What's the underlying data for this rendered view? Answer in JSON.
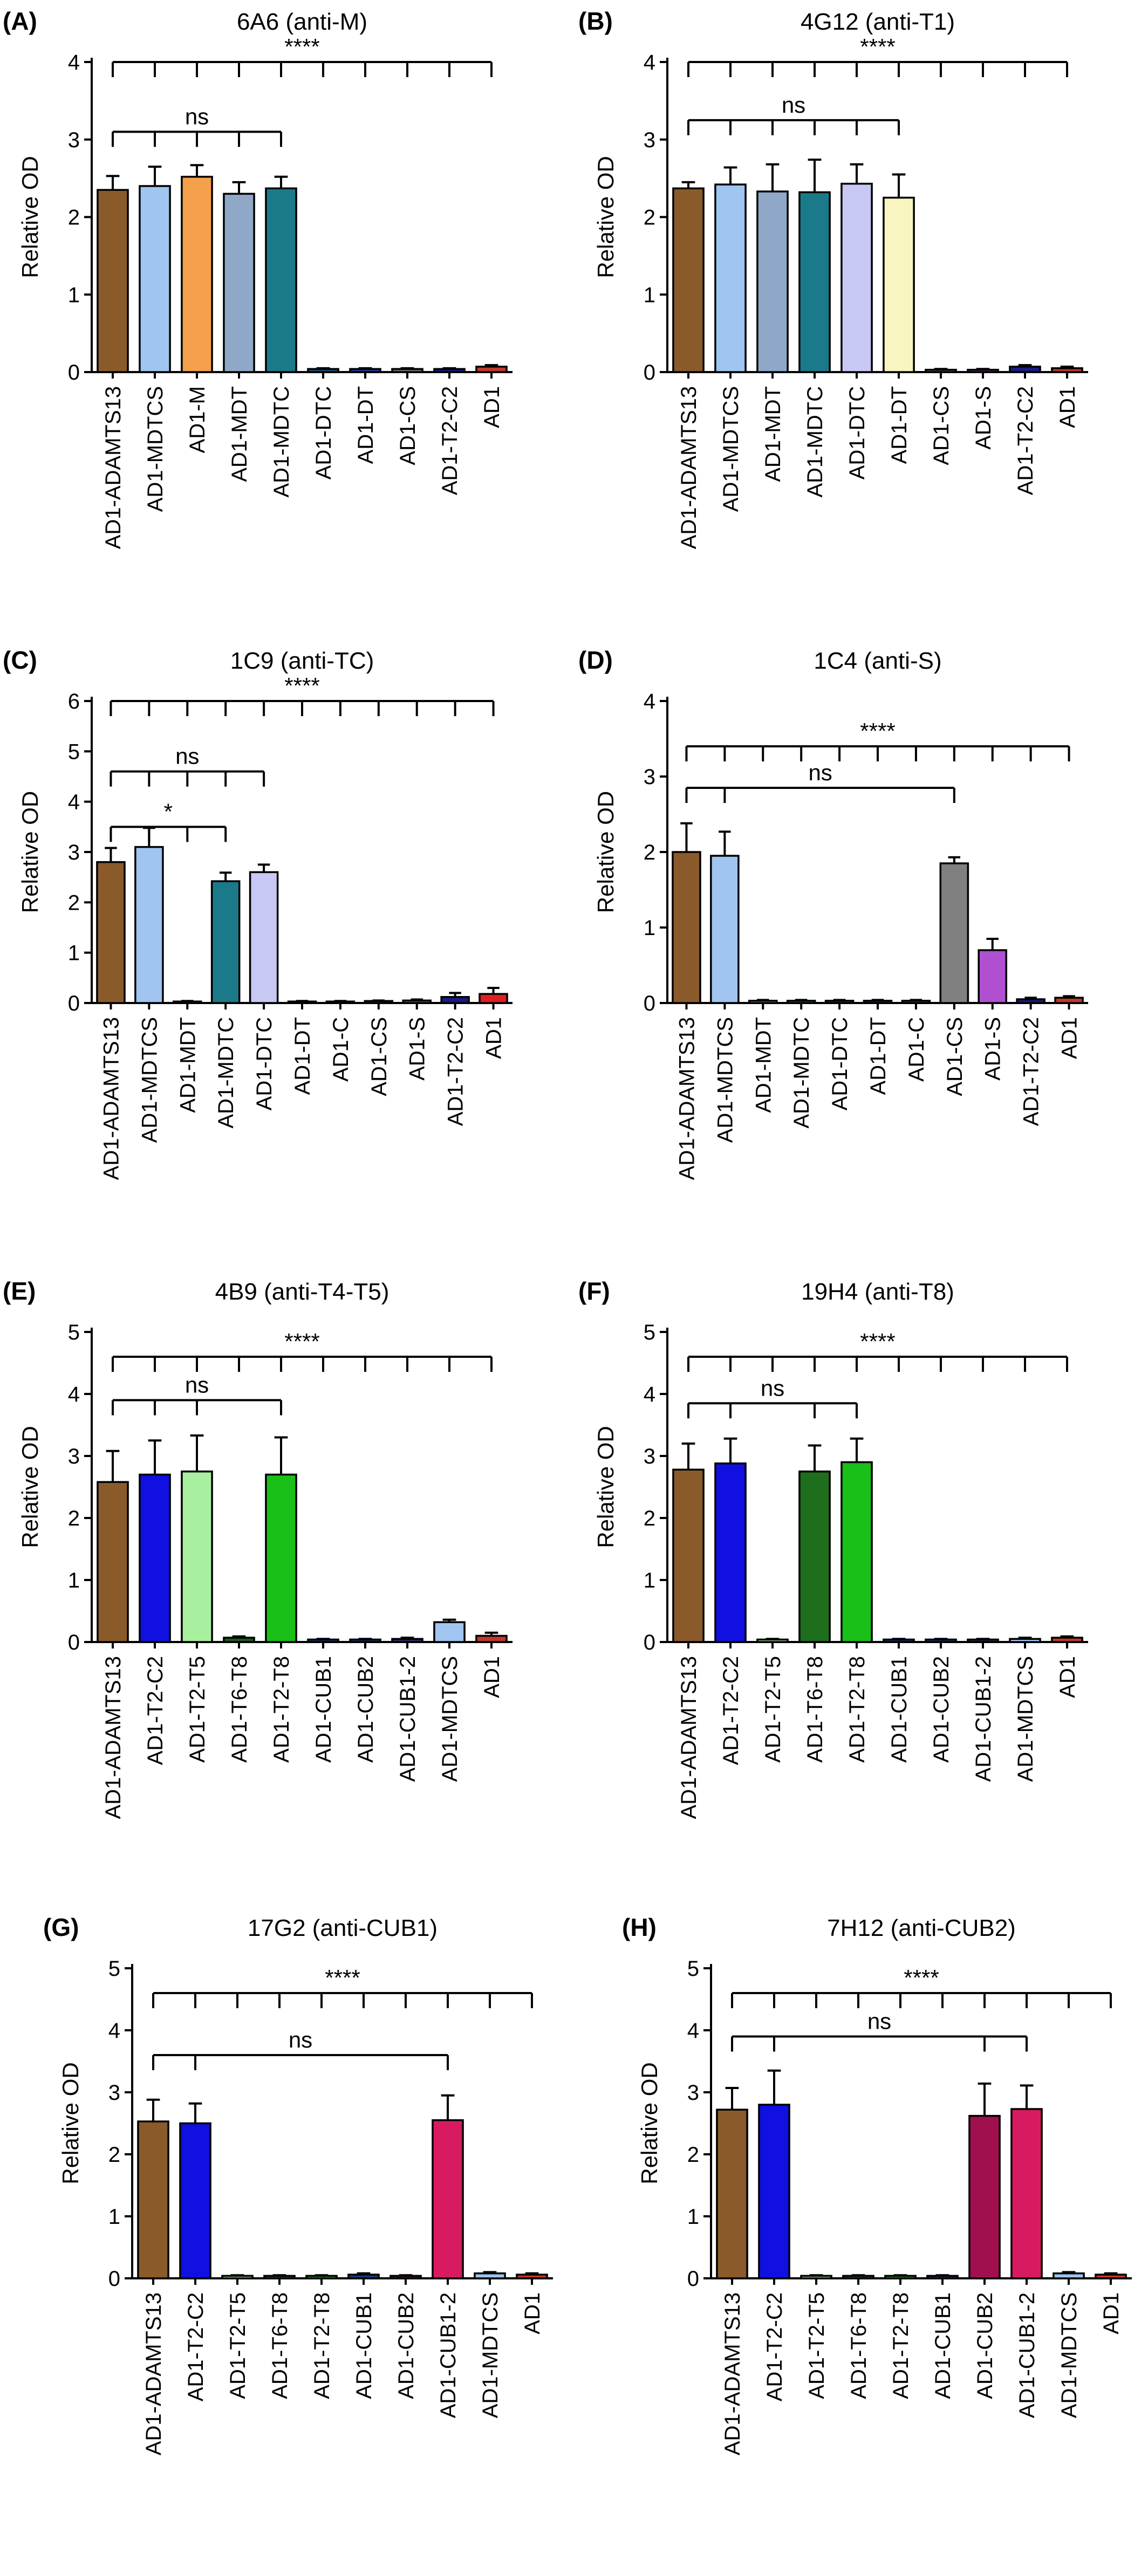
{
  "chart_data": [
    {
      "panel": "(A)",
      "title": "6A6 (anti-M)",
      "type": "bar",
      "ylabel": "Relative OD",
      "ylim": [
        0,
        4
      ],
      "yticks": [
        0,
        1,
        2,
        3,
        4
      ],
      "categories": [
        "AD1-ADAMTS13",
        "AD1-MDTCS",
        "AD1-M",
        "AD1-MDT",
        "AD1-MDTC",
        "AD1-DTC",
        "AD1-DT",
        "AD1-CS",
        "AD1-T2-C2",
        "AD1"
      ],
      "values": [
        2.35,
        2.4,
        2.52,
        2.3,
        2.37,
        0.04,
        0.04,
        0.04,
        0.04,
        0.07
      ],
      "errors": [
        0.18,
        0.25,
        0.15,
        0.15,
        0.15,
        0.01,
        0.01,
        0.01,
        0.01,
        0.02
      ],
      "colors": [
        "#8B5A2B",
        "#9FC5F0",
        "#F5A04A",
        "#8FA8C8",
        "#1B7A8A",
        "#1B4F72",
        "#1F3A93",
        "#6E6E6E",
        "#1A1A80",
        "#C0392B"
      ],
      "significance": [
        {
          "label": "****",
          "from": 0,
          "to": [
            1,
            2,
            3,
            4,
            5,
            6,
            7,
            8,
            9
          ],
          "level": 4.0
        },
        {
          "label": "ns",
          "from": 0,
          "to": [
            1,
            2,
            3,
            4
          ],
          "level": 3.1
        }
      ]
    },
    {
      "panel": "(B)",
      "title": "4G12 (anti-T1)",
      "type": "bar",
      "ylabel": "Relative OD",
      "ylim": [
        0,
        4
      ],
      "yticks": [
        0,
        1,
        2,
        3,
        4
      ],
      "categories": [
        "AD1-ADAMTS13",
        "AD1-MDTCS",
        "AD1-MDT",
        "AD1-MDTC",
        "AD1-DTC",
        "AD1-DT",
        "AD1-CS",
        "AD1-S",
        "AD1-T2-C2",
        "AD1"
      ],
      "values": [
        2.37,
        2.42,
        2.33,
        2.32,
        2.43,
        2.25,
        0.03,
        0.03,
        0.07,
        0.05
      ],
      "errors": [
        0.08,
        0.22,
        0.35,
        0.42,
        0.25,
        0.3,
        0.01,
        0.01,
        0.02,
        0.02
      ],
      "colors": [
        "#8B5A2B",
        "#9FC5F0",
        "#8FA8C8",
        "#1B7A8A",
        "#C8C8F5",
        "#F8F5C0",
        "#6E6E6E",
        "#7A3FA0",
        "#1A1A80",
        "#C0392B"
      ],
      "significance": [
        {
          "label": "****",
          "from": 0,
          "to": [
            1,
            2,
            3,
            4,
            5,
            6,
            7,
            8,
            9
          ],
          "level": 4.0
        },
        {
          "label": "ns",
          "from": 0,
          "to": [
            1,
            2,
            3,
            4,
            5
          ],
          "level": 3.25
        }
      ]
    },
    {
      "panel": "(C)",
      "title": "1C9 (anti-TC)",
      "type": "bar",
      "ylabel": "Relative OD",
      "ylim": [
        0,
        6
      ],
      "yticks": [
        0,
        1,
        2,
        3,
        4,
        5,
        6
      ],
      "categories": [
        "AD1-ADAMTS13",
        "AD1-MDTCS",
        "AD1-MDT",
        "AD1-MDTC",
        "AD1-DTC",
        "AD1-DT",
        "AD1-C",
        "AD1-CS",
        "AD1-S",
        "AD1-T2-C2",
        "AD1"
      ],
      "values": [
        2.8,
        3.1,
        0.03,
        2.42,
        2.6,
        0.03,
        0.03,
        0.04,
        0.05,
        0.12,
        0.18
      ],
      "errors": [
        0.28,
        0.38,
        0.01,
        0.17,
        0.15,
        0.01,
        0.01,
        0.01,
        0.02,
        0.08,
        0.12
      ],
      "colors": [
        "#8B5A2B",
        "#9FC5F0",
        "#8FA8C8",
        "#1B7A8A",
        "#C8C8F5",
        "#1F3A93",
        "#555555",
        "#6E6E6E",
        "#7A3FA0",
        "#1A1A80",
        "#E02020"
      ],
      "significance": [
        {
          "label": "****",
          "from": 0,
          "to": [
            1,
            2,
            3,
            4,
            5,
            6,
            7,
            8,
            9,
            10
          ],
          "level": 6.0
        },
        {
          "label": "ns",
          "from": 0,
          "to": [
            1,
            2,
            3,
            4
          ],
          "level": 4.6
        },
        {
          "label": "*",
          "from": 0,
          "to": [
            1,
            2,
            3
          ],
          "level": 3.5
        }
      ]
    },
    {
      "panel": "(D)",
      "title": "1C4 (anti-S)",
      "type": "bar",
      "ylabel": "Relative OD",
      "ylim": [
        0,
        4
      ],
      "yticks": [
        0,
        1,
        2,
        3,
        4
      ],
      "categories": [
        "AD1-ADAMTS13",
        "AD1-MDTCS",
        "AD1-MDT",
        "AD1-MDTC",
        "AD1-DTC",
        "AD1-DT",
        "AD1-C",
        "AD1-CS",
        "AD1-S",
        "AD1-T2-C2",
        "AD1"
      ],
      "values": [
        2.0,
        1.95,
        0.03,
        0.03,
        0.03,
        0.03,
        0.03,
        1.85,
        0.7,
        0.05,
        0.07
      ],
      "errors": [
        0.38,
        0.32,
        0.01,
        0.01,
        0.01,
        0.01,
        0.01,
        0.08,
        0.15,
        0.02,
        0.02
      ],
      "colors": [
        "#8B5A2B",
        "#9FC5F0",
        "#8FA8C8",
        "#1B7A8A",
        "#1B4F72",
        "#1F3A93",
        "#555555",
        "#808080",
        "#B050D0",
        "#1A1A80",
        "#C0392B"
      ],
      "significance": [
        {
          "label": "****",
          "from": 0,
          "to": [
            1,
            2,
            3,
            4,
            5,
            6,
            7,
            8,
            9,
            10
          ],
          "level": 3.4
        },
        {
          "label": "ns",
          "from": 0,
          "to": [
            1,
            7
          ],
          "level": 2.85
        }
      ]
    },
    {
      "panel": "(E)",
      "title": "4B9 (anti-T4-T5)",
      "type": "bar",
      "ylabel": "Relative OD",
      "ylim": [
        0,
        5
      ],
      "yticks": [
        0,
        1,
        2,
        3,
        4,
        5
      ],
      "categories": [
        "AD1-ADAMTS13",
        "AD1-T2-C2",
        "AD1-T2-T5",
        "AD1-T6-T8",
        "AD1-T2-T8",
        "AD1-CUB1",
        "AD1-CUB2",
        "AD1-CUB1-2",
        "AD1-MDTCS",
        "AD1"
      ],
      "values": [
        2.58,
        2.7,
        2.75,
        0.07,
        2.7,
        0.04,
        0.04,
        0.05,
        0.32,
        0.1
      ],
      "errors": [
        0.5,
        0.55,
        0.58,
        0.02,
        0.6,
        0.01,
        0.01,
        0.02,
        0.04,
        0.05
      ],
      "colors": [
        "#8B5A2B",
        "#1010E0",
        "#A8F0A0",
        "#1E5A1E",
        "#18C018",
        "#1A3A7A",
        "#1A3A7A",
        "#2A2A60",
        "#9FC5F0",
        "#C0392B"
      ],
      "significance": [
        {
          "label": "****",
          "from": 0,
          "to": [
            1,
            2,
            3,
            4,
            5,
            6,
            7,
            8,
            9
          ],
          "level": 4.6
        },
        {
          "label": "ns",
          "from": 0,
          "to": [
            1,
            2,
            4
          ],
          "level": 3.9
        }
      ]
    },
    {
      "panel": "(F)",
      "title": "19H4 (anti-T8)",
      "type": "bar",
      "ylabel": "Relative OD",
      "ylim": [
        0,
        5
      ],
      "yticks": [
        0,
        1,
        2,
        3,
        4,
        5
      ],
      "categories": [
        "AD1-ADAMTS13",
        "AD1-T2-C2",
        "AD1-T2-T5",
        "AD1-T6-T8",
        "AD1-T2-T8",
        "AD1-CUB1",
        "AD1-CUB2",
        "AD1-CUB1-2",
        "AD1-MDTCS",
        "AD1"
      ],
      "values": [
        2.78,
        2.88,
        0.04,
        2.75,
        2.9,
        0.04,
        0.04,
        0.04,
        0.05,
        0.07
      ],
      "errors": [
        0.42,
        0.4,
        0.01,
        0.42,
        0.38,
        0.01,
        0.01,
        0.01,
        0.02,
        0.02
      ],
      "colors": [
        "#8B5A2B",
        "#1010E0",
        "#A8F0A0",
        "#1E6E1E",
        "#18C018",
        "#1A3A7A",
        "#1A3A7A",
        "#2A2A60",
        "#9FC5F0",
        "#C0392B"
      ],
      "significance": [
        {
          "label": "****",
          "from": 0,
          "to": [
            1,
            2,
            3,
            4,
            5,
            6,
            7,
            8,
            9
          ],
          "level": 4.6
        },
        {
          "label": "ns",
          "from": 0,
          "to": [
            1,
            3,
            4
          ],
          "level": 3.85
        }
      ]
    },
    {
      "panel": "(G)",
      "title": "17G2 (anti-CUB1)",
      "type": "bar",
      "ylabel": "Relative OD",
      "ylim": [
        0,
        5
      ],
      "yticks": [
        0,
        1,
        2,
        3,
        4,
        5
      ],
      "categories": [
        "AD1-ADAMTS13",
        "AD1-T2-C2",
        "AD1-T2-T5",
        "AD1-T6-T8",
        "AD1-T2-T8",
        "AD1-CUB1",
        "AD1-CUB2",
        "AD1-CUB1-2",
        "AD1-MDTCS",
        "AD1"
      ],
      "values": [
        2.53,
        2.5,
        0.04,
        0.04,
        0.04,
        0.06,
        0.04,
        2.55,
        0.08,
        0.06
      ],
      "errors": [
        0.35,
        0.32,
        0.01,
        0.01,
        0.01,
        0.02,
        0.01,
        0.4,
        0.02,
        0.02
      ],
      "colors": [
        "#8B5A2B",
        "#1010E0",
        "#A8F0A0",
        "#1E5A1E",
        "#18C018",
        "#1A3A7A",
        "#5A1A3A",
        "#D81B60",
        "#9FC5F0",
        "#C0392B"
      ],
      "significance": [
        {
          "label": "****",
          "from": 0,
          "to": [
            1,
            2,
            3,
            4,
            5,
            6,
            7,
            8,
            9
          ],
          "level": 4.6
        },
        {
          "label": "ns",
          "from": 0,
          "to": [
            1,
            7
          ],
          "level": 3.6
        }
      ]
    },
    {
      "panel": "(H)",
      "title": "7H12 (anti-CUB2)",
      "type": "bar",
      "ylabel": "Relative OD",
      "ylim": [
        0,
        5
      ],
      "yticks": [
        0,
        1,
        2,
        3,
        4,
        5
      ],
      "categories": [
        "AD1-ADAMTS13",
        "AD1-T2-C2",
        "AD1-T2-T5",
        "AD1-T6-T8",
        "AD1-T2-T8",
        "AD1-CUB1",
        "AD1-CUB2",
        "AD1-CUB1-2",
        "AD1-MDTCS",
        "AD1"
      ],
      "values": [
        2.72,
        2.8,
        0.04,
        0.04,
        0.04,
        0.04,
        2.62,
        2.73,
        0.08,
        0.06
      ],
      "errors": [
        0.35,
        0.55,
        0.01,
        0.01,
        0.01,
        0.01,
        0.52,
        0.38,
        0.02,
        0.02
      ],
      "colors": [
        "#8B5A2B",
        "#1010E0",
        "#A8F0A0",
        "#1E5A1E",
        "#18C018",
        "#1A3A7A",
        "#A0104E",
        "#D81B60",
        "#9FC5F0",
        "#C0392B"
      ],
      "significance": [
        {
          "label": "****",
          "from": 0,
          "to": [
            1,
            2,
            3,
            4,
            5,
            6,
            7,
            8,
            9
          ],
          "level": 4.6
        },
        {
          "label": "ns",
          "from": 0,
          "to": [
            1,
            6,
            7
          ],
          "level": 3.9
        }
      ]
    }
  ]
}
